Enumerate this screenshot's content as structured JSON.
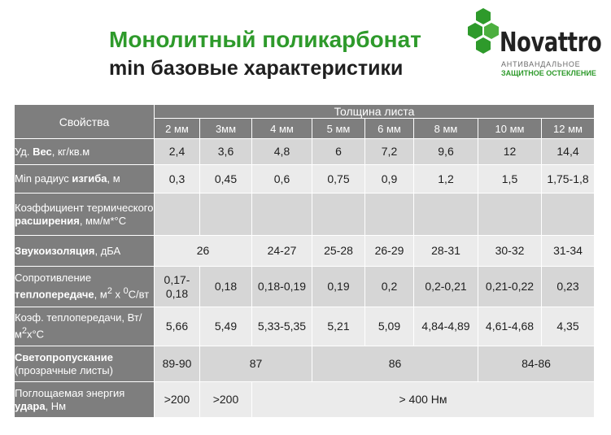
{
  "title": {
    "line1": "Монолитный поликарбонат",
    "line2": "min базовые характеристики"
  },
  "logo": {
    "name": "Novattro",
    "subtitle1": "АНТИВАНДАЛЬНОЕ",
    "subtitle2": "ЗАЩИТНОЕ ОСТЕКЛЕНИЕ"
  },
  "colors": {
    "brand_green": "#2e9a2b",
    "header_gray": "#7e7e7e",
    "row_dark": "#d6d6d6",
    "row_light": "#ebebeb"
  },
  "table": {
    "properties_header": "Свойства",
    "thickness_header": "Толщина листа",
    "thicknesses": [
      "2 мм",
      "3мм",
      "4 мм",
      "5 мм",
      "6 мм",
      "8 мм",
      "10 мм",
      "12 мм"
    ],
    "rows": {
      "weight": {
        "label_pre": "Уд. ",
        "label_bold": "Вес",
        "label_post": ", кг/кв.м",
        "values": [
          "2,4",
          "3,6",
          "4,8",
          "6",
          "7,2",
          "9,6",
          "12",
          "14,4"
        ]
      },
      "bend": {
        "label_pre": "Min радиус ",
        "label_bold": "изгиба",
        "label_post": ", м",
        "values": [
          "0,3",
          "0,45",
          "0,6",
          "0,75",
          "0,9",
          "1,2",
          "1,5",
          "1,75-1,8"
        ]
      },
      "expansion": {
        "label_pre": "Коэффициент термического ",
        "label_bold": "расширения",
        "label_post": ", мм/м*°С"
      },
      "sound": {
        "label_bold": "Звукоизоляция",
        "label_post": ", дБА",
        "values": [
          "26",
          "24-27",
          "25-28",
          "26-29",
          "28-31",
          "30-32",
          "31-34"
        ]
      },
      "heat_resist": {
        "label_pre": "Сопротивление ",
        "label_bold": "теплопередаче",
        "label_post1": ", м",
        "label_sup1": "2",
        "label_mid": " х ",
        "label_sup2": "0",
        "label_post2": "С/вт",
        "values": [
          "0,17-0,18",
          "0,18",
          "0,18-0,19",
          "0,19",
          "0,2",
          "0,2-0,21",
          "0,21-0,22",
          "0,23"
        ]
      },
      "heat_coef": {
        "label_pre": "Коэф. теплопередачи, Вт/м",
        "label_sup": "2",
        "label_post": "х°С",
        "values": [
          "5,66",
          "5,49",
          "5,33-5,35",
          "5,21",
          "5,09",
          "4,84-4,89",
          "4,61-4,68",
          "4,35"
        ]
      },
      "light": {
        "label_bold": "Светопропускание",
        "label_post": "(прозрачные листы)",
        "values": [
          "89-90",
          "87",
          "86",
          "84-86"
        ]
      },
      "impact": {
        "label_pre": "Поглощаемая энергия ",
        "label_bold": "удара",
        "label_post": ", Нм",
        "values": [
          ">200",
          ">200",
          "> 400 Нм"
        ]
      }
    }
  }
}
